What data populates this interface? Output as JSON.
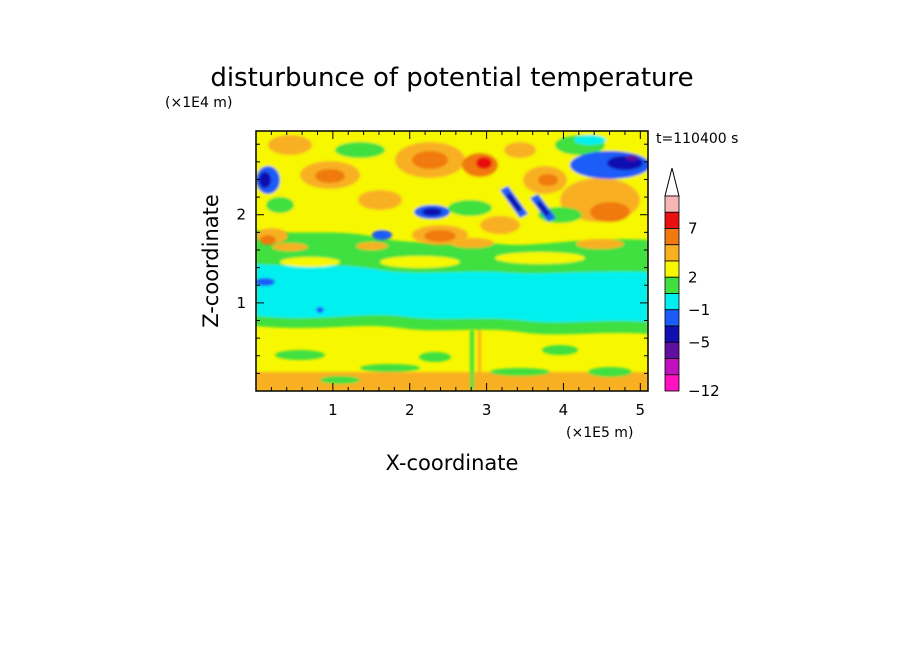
{
  "chart_data": {
    "type": "heatmap",
    "title": "disturbunce of potential temperature",
    "xlabel": "X-coordinate",
    "ylabel": "Z-coordinate",
    "x_unit": "(×1E5 m)",
    "y_unit": "(×1E4 m)",
    "time_label": "t=110400 s",
    "xlim": [
      0,
      5.1
    ],
    "ylim": [
      0,
      2.95
    ],
    "x_ticks": [
      "1",
      "2",
      "3",
      "4",
      "5"
    ],
    "y_ticks": [
      "1",
      "2"
    ],
    "colorbar": {
      "labels": [
        "7",
        "2",
        "−1",
        "−5",
        "−12"
      ],
      "colors": [
        "#f7b6b6",
        "#e81010",
        "#f07a10",
        "#f8b020",
        "#f7f700",
        "#40e040",
        "#00f0f0",
        "#1c5cf8",
        "#1010b0",
        "#6010a0",
        "#c010c0",
        "#ff10c0"
      ]
    }
  }
}
